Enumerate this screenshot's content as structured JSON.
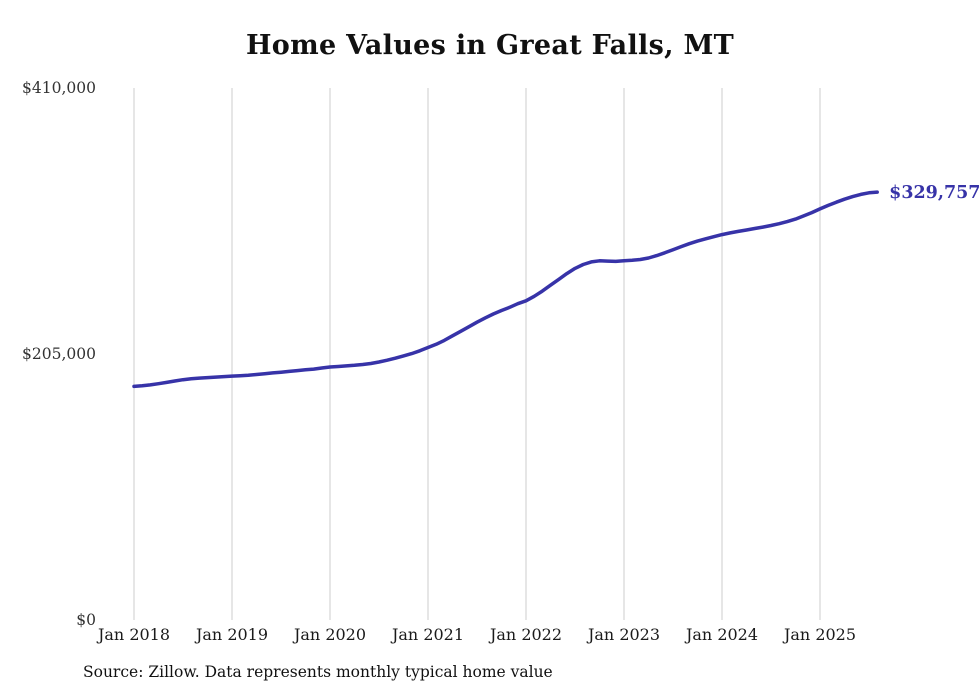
{
  "page": {
    "title": "Home Values in Great Falls, MT",
    "source_note": "Source: Zillow. Data represents monthly typical home value"
  },
  "chart_data": {
    "type": "line",
    "title": "Home Values in Great Falls, MT",
    "ylabel": "",
    "xlabel": "",
    "ylim": [
      0,
      410000
    ],
    "grid": "vertical-only",
    "legend": "none",
    "line_color": "#3733a8",
    "end_label": "$329,757",
    "end_value": 329757,
    "y_ticks": [
      {
        "value": 0,
        "label": "$0"
      },
      {
        "value": 205000,
        "label": "$205,000"
      },
      {
        "value": 410000,
        "label": "$410,000"
      }
    ],
    "x_tick_labels": [
      "Jan 2018",
      "Jan 2019",
      "Jan 2020",
      "Jan 2021",
      "Jan 2022",
      "Jan 2023",
      "Jan 2024",
      "Jan 2025"
    ],
    "x": [
      "2018-01",
      "2018-02",
      "2018-03",
      "2018-04",
      "2018-05",
      "2018-06",
      "2018-07",
      "2018-08",
      "2018-09",
      "2018-10",
      "2018-11",
      "2018-12",
      "2019-01",
      "2019-02",
      "2019-03",
      "2019-04",
      "2019-05",
      "2019-06",
      "2019-07",
      "2019-08",
      "2019-09",
      "2019-10",
      "2019-11",
      "2019-12",
      "2020-01",
      "2020-02",
      "2020-03",
      "2020-04",
      "2020-05",
      "2020-06",
      "2020-07",
      "2020-08",
      "2020-09",
      "2020-10",
      "2020-11",
      "2020-12",
      "2021-01",
      "2021-02",
      "2021-03",
      "2021-04",
      "2021-05",
      "2021-06",
      "2021-07",
      "2021-08",
      "2021-09",
      "2021-10",
      "2021-11",
      "2021-12",
      "2022-01",
      "2022-02",
      "2022-03",
      "2022-04",
      "2022-05",
      "2022-06",
      "2022-07",
      "2022-08",
      "2022-09",
      "2022-10",
      "2022-11",
      "2022-12",
      "2023-01",
      "2023-02",
      "2023-03",
      "2023-04",
      "2023-05",
      "2023-06",
      "2023-07",
      "2023-08",
      "2023-09",
      "2023-10",
      "2023-11",
      "2023-12",
      "2024-01",
      "2024-02",
      "2024-03",
      "2024-04",
      "2024-05",
      "2024-06",
      "2024-07",
      "2024-08",
      "2024-09",
      "2024-10",
      "2024-11",
      "2024-12",
      "2025-01",
      "2025-02",
      "2025-03",
      "2025-04",
      "2025-05",
      "2025-06",
      "2025-07",
      "2025-08"
    ],
    "values": [
      180000,
      180500,
      181200,
      182100,
      183100,
      184200,
      185200,
      185900,
      186400,
      186800,
      187200,
      187600,
      188000,
      188300,
      188700,
      189200,
      189800,
      190400,
      191000,
      191600,
      192200,
      192800,
      193400,
      194200,
      195000,
      195400,
      195800,
      196300,
      196900,
      197700,
      198800,
      200200,
      201800,
      203500,
      205300,
      207500,
      210000,
      212500,
      215500,
      219000,
      222500,
      226000,
      229500,
      232800,
      235800,
      238500,
      241000,
      243800,
      246000,
      249500,
      253500,
      258000,
      262500,
      267000,
      271000,
      274000,
      276000,
      276800,
      276600,
      276400,
      276800,
      277200,
      277800,
      279000,
      280800,
      283000,
      285400,
      287800,
      290000,
      292000,
      293800,
      295400,
      297000,
      298300,
      299500,
      300600,
      301700,
      302800,
      304000,
      305400,
      307000,
      309000,
      311400,
      314000,
      316800,
      319500,
      322000,
      324300,
      326300,
      328000,
      329200,
      329757
    ]
  }
}
